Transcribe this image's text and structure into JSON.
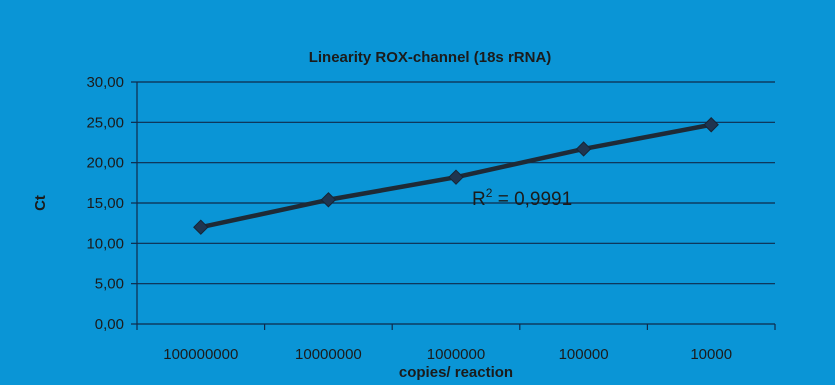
{
  "chart_data": {
    "type": "line",
    "title": "Linearity ROX-channel (18s rRNA)",
    "xlabel": "copies/ reaction",
    "ylabel": "Ct",
    "categories": [
      "100000000",
      "10000000",
      "1000000",
      "100000",
      "10000"
    ],
    "series": [
      {
        "values": [
          12.0,
          15.4,
          18.2,
          21.7,
          24.7
        ]
      }
    ],
    "ylim": [
      0,
      30
    ],
    "yticks": [
      "0,00",
      "5,00",
      "10,00",
      "15,00",
      "20,00",
      "25,00",
      "30,00"
    ],
    "grid": true,
    "annotation": {
      "prefix": "R",
      "sup": "2",
      "suffix": " = 0,9991"
    },
    "colors": {
      "background": "#0a95d6",
      "grid": "#0f2a4a",
      "line": "#1e2a36",
      "marker": "#1f3550",
      "text": "#1b1b1b"
    }
  }
}
